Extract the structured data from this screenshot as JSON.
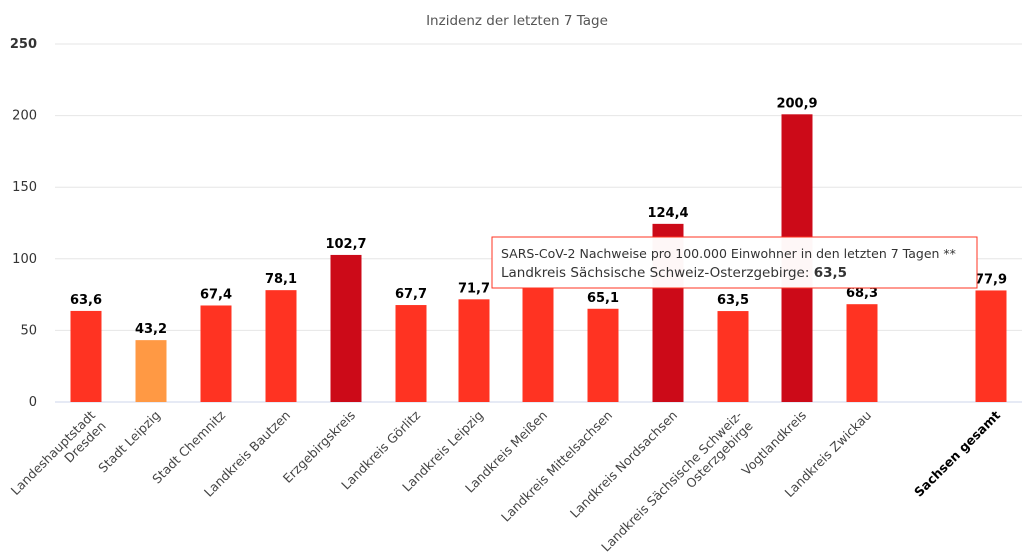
{
  "chart_data": {
    "type": "bar",
    "title": "Inzidenz der letzten 7 Tage",
    "xlabel": "",
    "ylabel": "",
    "ylim": [
      0,
      250
    ],
    "yticks": [
      "0",
      "50",
      "100",
      "150",
      "200",
      "250"
    ],
    "grid": true,
    "categories": [
      "Landeshauptstadt Dresden",
      "Stadt Leipzig",
      "Stadt Chemnitz",
      "Landkreis Bautzen",
      "Erzgebirgskreis",
      "Landkreis Görlitz",
      "Landkreis Leipzig",
      "Landkreis Meißen",
      "Landkreis Mittelsachsen",
      "Landkreis Nordsachsen",
      "Landkreis Sächsische Schweiz-Osterzgebirge",
      "Vogtlandkreis",
      "Landkreis Zwickau",
      "Sachsen gesamt"
    ],
    "values": [
      63.6,
      43.2,
      67.4,
      78.1,
      102.7,
      67.7,
      71.7,
      80.0,
      65.1,
      124.4,
      63.5,
      200.9,
      68.3,
      77.9
    ],
    "value_labels": [
      "63,6",
      "43,2",
      "67,4",
      "78,1",
      "102,7",
      "67,7",
      "71,7",
      "",
      "65,1",
      "124,4",
      "63,5",
      "200,9",
      "68,3",
      "77,9"
    ],
    "colors": {
      "low": "#ff9944",
      "mid": "#ff3322",
      "high": "#cc0a18"
    },
    "tooltip": {
      "line1": "SARS-CoV-2 Nachweise pro 100.000 Einwohner in den letzten 7 Tagen **",
      "line2_label": "Landkreis Sächsische Schweiz-Osterzgebirge: ",
      "line2_value": "63,5"
    }
  }
}
